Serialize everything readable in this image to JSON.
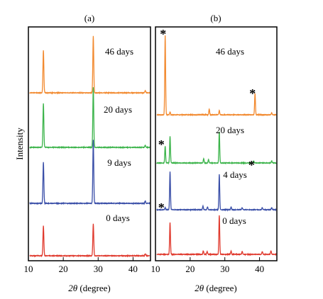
{
  "chart_data": [
    {
      "type": "line",
      "title": "(a)",
      "xlabel": "2θ (degree)",
      "ylabel": "Intensity",
      "xlim": [
        10,
        45
      ],
      "x_ticks": [
        10,
        20,
        30,
        40
      ],
      "y_ticks": false,
      "grid": false,
      "legend": "none",
      "traces": [
        {
          "name": "46 days",
          "color": "#f28a30",
          "peaks": [
            [
              14.3,
              60
            ],
            [
              28.6,
              80
            ],
            [
              43.5,
              3
            ]
          ]
        },
        {
          "name": "20 days",
          "color": "#3cb44b",
          "peaks": [
            [
              14.3,
              62
            ],
            [
              28.6,
              85
            ],
            [
              43.5,
              3
            ]
          ]
        },
        {
          "name": "9 days",
          "color": "#3a4fa8",
          "peaks": [
            [
              14.3,
              58
            ],
            [
              28.6,
              90
            ],
            [
              43.5,
              3
            ]
          ]
        },
        {
          "name": "0 days",
          "color": "#e03a2e",
          "peaks": [
            [
              14.3,
              42
            ],
            [
              28.6,
              45
            ],
            [
              43.5,
              3
            ]
          ]
        }
      ]
    },
    {
      "type": "line",
      "title": "(b)",
      "xlabel": "2θ (degree)",
      "xlim": [
        10,
        45
      ],
      "x_ticks": [
        10,
        20,
        30,
        40
      ],
      "y_ticks": false,
      "grid": false,
      "legend": "none",
      "marker_label": "*",
      "traces": [
        {
          "name": "46 days",
          "color": "#f28a30",
          "peaks": [
            [
              12.8,
              112
            ],
            [
              14.2,
              4
            ],
            [
              25.5,
              8
            ],
            [
              28.4,
              6
            ],
            [
              38.7,
              30
            ],
            [
              43.5,
              3
            ]
          ]
        },
        {
          "name": "20 days",
          "color": "#3cb44b",
          "peaks": [
            [
              12.8,
              24
            ],
            [
              14.2,
              38
            ],
            [
              23.9,
              6
            ],
            [
              25.3,
              5
            ],
            [
              28.4,
              44
            ],
            [
              38.3,
              3
            ],
            [
              43.5,
              3
            ]
          ]
        },
        {
          "name": "4 days",
          "color": "#3a4fa8",
          "peaks": [
            [
              12.8,
              3
            ],
            [
              14.2,
              54
            ],
            [
              23.7,
              5
            ],
            [
              25.0,
              4
            ],
            [
              28.4,
              50
            ],
            [
              31.8,
              4
            ],
            [
              35.0,
              3
            ],
            [
              40.8,
              3
            ],
            [
              43.5,
              3
            ]
          ]
        },
        {
          "name": "0 days",
          "color": "#e03a2e",
          "peaks": [
            [
              14.2,
              45
            ],
            [
              23.8,
              5
            ],
            [
              24.9,
              4
            ],
            [
              28.4,
              55
            ],
            [
              31.8,
              5
            ],
            [
              35.0,
              4
            ],
            [
              40.8,
              4
            ],
            [
              43.3,
              5
            ]
          ]
        }
      ]
    }
  ]
}
